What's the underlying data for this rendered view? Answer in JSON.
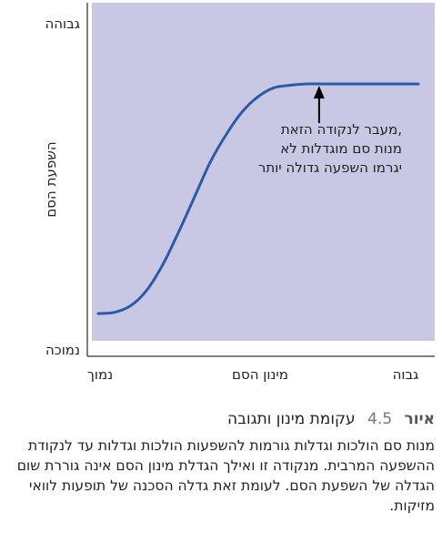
{
  "chart_data": {
    "type": "line",
    "title": "",
    "xlabel": "מינון הסם",
    "ylabel": "השפעת הסם",
    "x_tick_labels": {
      "low": "נמוך",
      "high": "גבוה"
    },
    "y_tick_labels": {
      "high": "גבוהה",
      "low": "נמוכה"
    },
    "xlim": [
      0,
      1
    ],
    "ylim": [
      0,
      1
    ],
    "grid": false,
    "series": [
      {
        "name": "",
        "x": [
          0.0,
          0.05,
          0.1,
          0.15,
          0.2,
          0.25,
          0.3,
          0.35,
          0.4,
          0.45,
          0.5,
          0.55,
          0.6,
          0.65,
          0.7,
          0.75,
          0.8,
          0.85,
          0.9,
          0.95,
          1.0
        ],
        "y": [
          0.05,
          0.055,
          0.08,
          0.14,
          0.24,
          0.37,
          0.51,
          0.65,
          0.76,
          0.85,
          0.91,
          0.945,
          0.955,
          0.96,
          0.96,
          0.96,
          0.96,
          0.96,
          0.96,
          0.96,
          0.96
        ]
      }
    ],
    "annotation": {
      "lines": [
        "מעבר לנקודה הזאת,",
        "מנות סם מוגדלות לא",
        "יגרמו השפעה גדולה יותר"
      ],
      "point": {
        "x": 0.69,
        "y": 0.96
      }
    },
    "colors": {
      "plot_background": "#c9c8e4",
      "line": "#2a5aa8",
      "axis": "#000000",
      "arrow": "#000000"
    }
  },
  "caption": {
    "label": "איור",
    "number": "4.5",
    "title": "עקומת מינון ותגובה",
    "body": "מנות סם הולכות וגדלות גורמות להשפעות הולכות וגדלות עד לנקודת ההשפעה המרבית. מנקודה זו ואילך הגדלת מינון הסם אינה גוררת שום הגדלה של השפעת הסם. לעומת זאת גדלה הסכנה של תופעות לוואי מזיקות."
  }
}
